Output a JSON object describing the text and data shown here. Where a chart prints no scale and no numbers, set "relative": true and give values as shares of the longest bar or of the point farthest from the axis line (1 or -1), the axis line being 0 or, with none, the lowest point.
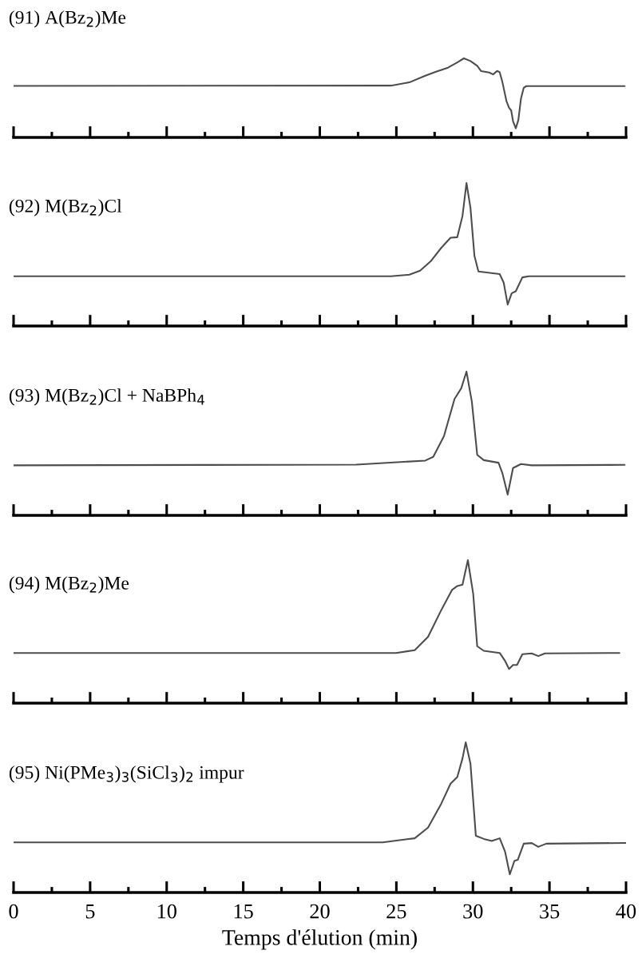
{
  "chart_data": [
    {
      "type": "line",
      "title": "(91) A(Bz$_{2}$)Me",
      "relative": true,
      "color": "#4d4d4d",
      "xlim": [
        0,
        40
      ],
      "xticks": [
        0,
        {
          "value": 2.5,
          "label": null
        },
        5,
        {
          "value": 7.5,
          "label": null
        },
        10,
        {
          "value": 12.5,
          "label": null
        },
        15,
        {
          "value": 17.5,
          "label": null
        },
        20,
        {
          "value": 22.5,
          "label": null
        },
        25,
        {
          "value": 27.5,
          "label": null
        },
        30,
        {
          "value": 32.5,
          "label": null
        },
        35,
        {
          "value": 37.5,
          "label": null
        },
        40
      ],
      "tick_labels": false,
      "x": [
        0,
        24.64,
        25.85,
        26.89,
        27.59,
        28.37,
        28.98,
        29.41,
        29.84,
        30.28,
        30.54,
        31.06,
        31.32,
        31.58,
        31.75,
        31.93,
        32.19,
        32.36,
        32.5,
        32.62,
        32.8,
        32.97,
        33.14,
        33.32,
        33.49,
        39.91
      ],
      "values": [
        0.652,
        0.655,
        0.696,
        0.78,
        0.831,
        0.882,
        0.949,
        1.0,
        0.966,
        0.905,
        0.838,
        0.821,
        0.797,
        0.841,
        0.824,
        0.696,
        0.459,
        0.375,
        0.341,
        0.206,
        0.115,
        0.223,
        0.493,
        0.628,
        0.649,
        0.649
      ]
    },
    {
      "type": "line",
      "title": "(92) M(Bz$_{2}$)Cl",
      "relative": true,
      "color": "#4d4d4d",
      "xlim": [
        0,
        40
      ],
      "xticks": [
        0,
        {
          "value": 2.5,
          "label": null
        },
        5,
        {
          "value": 7.5,
          "label": null
        },
        10,
        {
          "value": 12.5,
          "label": null
        },
        15,
        {
          "value": 17.5,
          "label": null
        },
        20,
        {
          "value": 22.5,
          "label": null
        },
        25,
        {
          "value": 27.5,
          "label": null
        },
        30,
        {
          "value": 32.5,
          "label": null
        },
        35,
        {
          "value": 37.5,
          "label": null
        },
        40
      ],
      "tick_labels": false,
      "x": [
        0,
        24.64,
        25.85,
        26.55,
        27.24,
        27.93,
        28.54,
        28.98,
        29.32,
        29.58,
        29.84,
        30.1,
        30.36,
        30.89,
        31.75,
        32.01,
        32.27,
        32.53,
        32.8,
        33.23,
        33.66,
        39.91
      ],
      "values": [
        0.348,
        0.348,
        0.359,
        0.387,
        0.452,
        0.546,
        0.617,
        0.621,
        0.77,
        1.0,
        0.826,
        0.49,
        0.381,
        0.374,
        0.363,
        0.303,
        0.15,
        0.228,
        0.243,
        0.34,
        0.348,
        0.348
      ]
    },
    {
      "type": "line",
      "title": "(93) M(Bz$_{2}$)Cl + NaBPh$_{4}$",
      "relative": true,
      "color": "#4d4d4d",
      "xlim": [
        0,
        40
      ],
      "xticks": [
        0,
        {
          "value": 2.5,
          "label": null
        },
        5,
        {
          "value": 7.5,
          "label": null
        },
        10,
        {
          "value": 12.5,
          "label": null
        },
        15,
        {
          "value": 17.5,
          "label": null
        },
        20,
        {
          "value": 22.5,
          "label": null
        },
        25,
        {
          "value": 27.5,
          "label": null
        },
        30,
        {
          "value": 32.5,
          "label": null
        },
        35,
        {
          "value": 37.5,
          "label": null
        },
        40
      ],
      "tick_labels": false,
      "x": [
        0,
        22.38,
        26.89,
        27.41,
        28.11,
        28.8,
        29.24,
        29.58,
        29.93,
        30.28,
        30.71,
        31.67,
        31.93,
        32.27,
        32.62,
        33.14,
        33.84,
        39.91
      ],
      "values": [
        0.348,
        0.353,
        0.381,
        0.407,
        0.551,
        0.81,
        0.884,
        1.0,
        0.791,
        0.421,
        0.384,
        0.366,
        0.292,
        0.144,
        0.329,
        0.357,
        0.348,
        0.351
      ]
    },
    {
      "type": "line",
      "title": "(94) M(Bz$_{2}$)Me",
      "relative": true,
      "color": "#4d4d4d",
      "xlim": [
        0,
        40
      ],
      "xticks": [
        0,
        {
          "value": 2.5,
          "label": null
        },
        5,
        {
          "value": 7.5,
          "label": null
        },
        10,
        {
          "value": 12.5,
          "label": null
        },
        15,
        {
          "value": 17.5,
          "label": null
        },
        20,
        {
          "value": 22.5,
          "label": null
        },
        25,
        {
          "value": 27.5,
          "label": null
        },
        30,
        {
          "value": 32.5,
          "label": null
        },
        35,
        {
          "value": 37.5,
          "label": null
        },
        40
      ],
      "tick_labels": false,
      "x": [
        0,
        24.98,
        26.2,
        27.07,
        27.93,
        28.63,
        28.98,
        29.32,
        29.67,
        30.02,
        30.28,
        30.71,
        31.75,
        32.1,
        32.36,
        32.62,
        32.88,
        33.23,
        33.84,
        34.27,
        34.7,
        39.57
      ],
      "values": [
        0.351,
        0.351,
        0.37,
        0.464,
        0.65,
        0.791,
        0.819,
        0.828,
        1.0,
        0.763,
        0.398,
        0.366,
        0.351,
        0.295,
        0.239,
        0.267,
        0.267,
        0.342,
        0.348,
        0.329,
        0.348,
        0.351
      ]
    },
    {
      "type": "line",
      "title": "(95) Ni(PMe$_{3}$)$_{3}$(SiCl$_{3}$)$_{2}$ impur",
      "relative": true,
      "color": "#4d4d4d",
      "xlim": [
        0,
        40
      ],
      "xticks": [
        0,
        {
          "value": 2.5,
          "label": null
        },
        5,
        {
          "value": 7.5,
          "label": null
        },
        10,
        {
          "value": 12.5,
          "label": null
        },
        15,
        {
          "value": 17.5,
          "label": null
        },
        20,
        {
          "value": 22.5,
          "label": null
        },
        25,
        {
          "value": 27.5,
          "label": null
        },
        30,
        {
          "value": 32.5,
          "label": null
        },
        35,
        {
          "value": 37.5,
          "label": null
        },
        40
      ],
      "tick_labels": "x",
      "xlabel": "Temps d'élution (min)",
      "x": [
        0,
        24.11,
        26.2,
        27.07,
        27.93,
        28.54,
        28.98,
        29.32,
        29.53,
        29.84,
        30.19,
        30.71,
        31.23,
        31.75,
        32.1,
        32.41,
        32.71,
        32.93,
        33.32,
        33.84,
        34.27,
        34.79,
        40.0
      ],
      "values": [
        0.334,
        0.334,
        0.361,
        0.432,
        0.591,
        0.725,
        0.769,
        0.893,
        1.0,
        0.858,
        0.378,
        0.357,
        0.343,
        0.361,
        0.272,
        0.121,
        0.21,
        0.218,
        0.325,
        0.329,
        0.304,
        0.325,
        0.33
      ]
    }
  ]
}
